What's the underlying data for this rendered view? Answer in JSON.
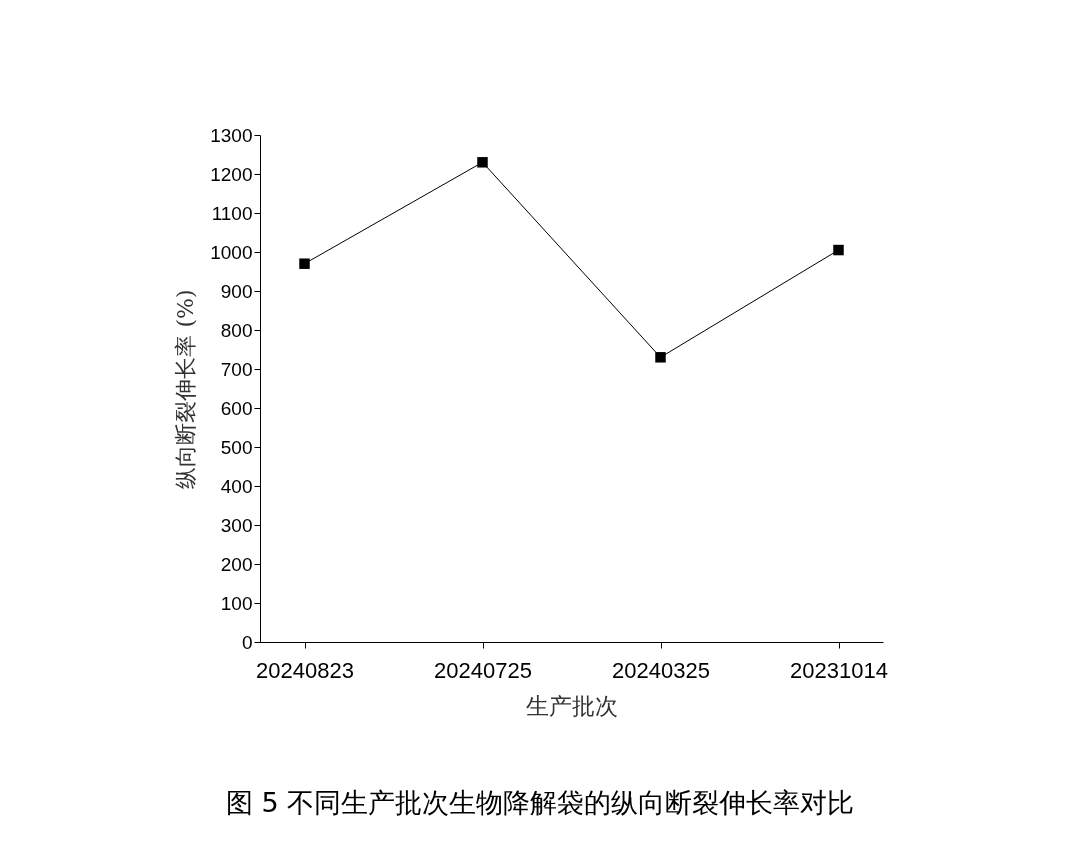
{
  "chart_data": {
    "type": "line",
    "xlabel": "生产批次",
    "ylabel": "纵向断裂伸长率 (%)",
    "categories": [
      "20240823",
      "20240725",
      "20240325",
      "20231014"
    ],
    "series": [
      {
        "color": "#000000",
        "values": [
          970,
          1230,
          730,
          1005
        ]
      }
    ],
    "ylim": [
      0,
      1300
    ],
    "yticks": [
      0,
      100,
      200,
      300,
      400,
      500,
      600,
      700,
      800,
      900,
      1000,
      1100,
      1200,
      1300
    ],
    "grid": false,
    "marker": "square",
    "annotations": [
      "图 5 不同生产批次生物降解袋的纵向断裂伸长率对比"
    ]
  }
}
